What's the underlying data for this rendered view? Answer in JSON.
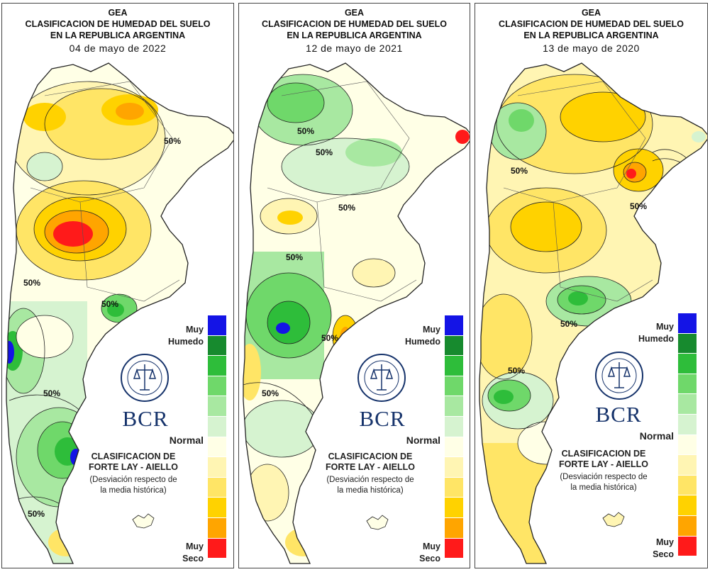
{
  "legend_colors": [
    "#1414e6",
    "#178a2e",
    "#2ebd3a",
    "#6fd86a",
    "#a8e8a1",
    "#d6f3d0",
    "#ffffe6",
    "#fff5b3",
    "#ffe566",
    "#ffd200",
    "#ffa500",
    "#ff1a1a"
  ],
  "panels": [
    {
      "header": {
        "line1": "GEA",
        "line2": "CLASIFICACION DE HUMEDAD DEL SUELO",
        "line3": "EN LA REPUBLICA ARGENTINA",
        "date": "04 de mayo de 2022"
      },
      "legend": {
        "muy_humedo_1": "Muy",
        "muy_humedo_2": "Humedo",
        "normal": "Normal",
        "muy_seco_1": "Muy",
        "muy_seco_2": "Seco"
      },
      "brand": "BCR",
      "classification": {
        "line1": "CLASIFICACION DE",
        "line2": "FORTE LAY - AIELLO",
        "line3": "(Desviación respecto de",
        "line4": "la media histórica)"
      },
      "contour_labels": [
        "50%",
        "50%",
        "50%",
        "50%",
        "50%"
      ]
    },
    {
      "header": {
        "line1": "GEA",
        "line2": "CLASIFICACION DE HUMEDAD DEL SUELO",
        "line3": "EN LA REPUBLICA ARGENTINA",
        "date": "12 de mayo de 2021"
      },
      "legend": {
        "muy_humedo_1": "Muy",
        "muy_humedo_2": "Humedo",
        "normal": "Normal",
        "muy_seco_1": "Muy",
        "muy_seco_2": "Seco"
      },
      "brand": "BCR",
      "classification": {
        "line1": "CLASIFICACION DE",
        "line2": "FORTE LAY - AIELLO",
        "line3": "(Desviación respecto de",
        "line4": "la media histórica)"
      },
      "contour_labels": [
        "50%",
        "50%",
        "50%",
        "50%",
        "50%",
        "50%"
      ]
    },
    {
      "header": {
        "line1": "GEA",
        "line2": "CLASIFICACION DE HUMEDAD DEL SUELO",
        "line3": "EN LA REPUBLICA ARGENTINA",
        "date": "13 de mayo de 2020"
      },
      "legend": {
        "muy_humedo_1": "Muy",
        "muy_humedo_2": "Humedo",
        "normal": "Normal",
        "muy_seco_1": "Muy",
        "muy_seco_2": "Seco"
      },
      "brand": "BCR",
      "classification": {
        "line1": "CLASIFICACION DE",
        "line2": "FORTE LAY - AIELLO",
        "line3": "(Desviación respecto de",
        "line4": "la media histórica)"
      },
      "contour_labels": [
        "50%",
        "50%",
        "50%",
        "50%"
      ]
    }
  ]
}
